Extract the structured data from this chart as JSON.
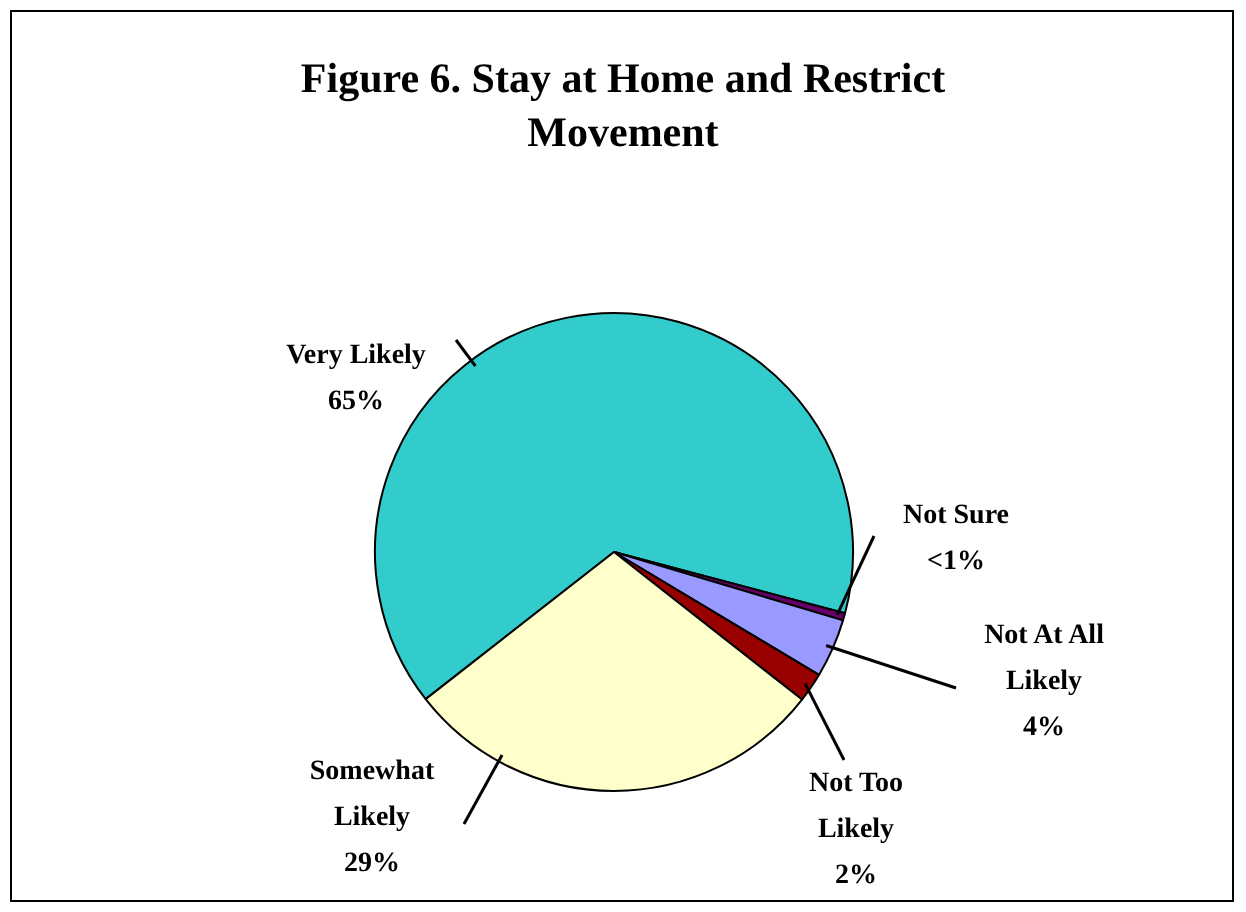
{
  "chart_data": {
    "type": "pie",
    "title": "Figure 6. Stay at Home and Restrict Movement",
    "categories": [
      "Very Likely",
      "Not Sure",
      "Not At All Likely",
      "Not Too Likely",
      "Somewhat Likely"
    ],
    "values": [
      65,
      0.5,
      4,
      2,
      29
    ],
    "value_labels": [
      "65%",
      "<1%",
      "4%",
      "2%",
      "29%"
    ],
    "colors": [
      "#33cccc",
      "#660066",
      "#9999ff",
      "#990000",
      "#ffffcc"
    ],
    "legend": false
  }
}
